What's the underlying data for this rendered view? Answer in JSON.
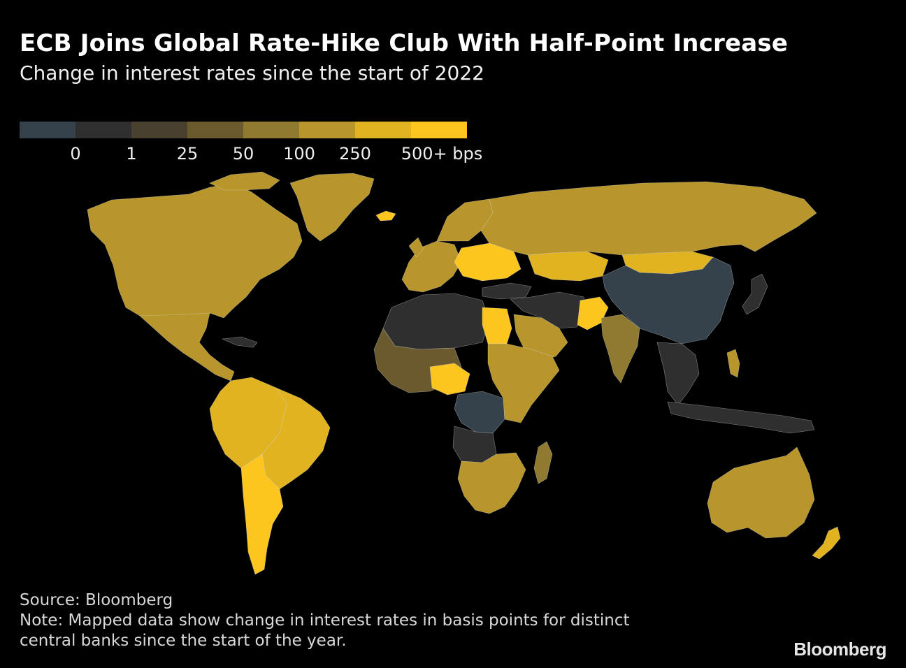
{
  "header": {
    "title": "ECB Joins Global Rate-Hike Club With Half-Point Increase",
    "subtitle": "Change in interest rates since the start of 2022"
  },
  "legend": {
    "colors": [
      "#35424b",
      "#2f2f2f",
      "#4a4030",
      "#6b5a2e",
      "#8f7a30",
      "#b8962b",
      "#e2b321",
      "#fdc61e"
    ],
    "labels": [
      "0",
      "1",
      "25",
      "50",
      "100",
      "250",
      "500+ bps"
    ]
  },
  "map": {
    "regions": [
      {
        "name": "north-america",
        "bin": 5
      },
      {
        "name": "mexico-central-america",
        "bin": 5
      },
      {
        "name": "caribbean",
        "bin": 1
      },
      {
        "name": "south-america-north",
        "bin": 6
      },
      {
        "name": "brazil",
        "bin": 6
      },
      {
        "name": "argentina",
        "bin": 7
      },
      {
        "name": "greenland",
        "bin": 5
      },
      {
        "name": "iceland",
        "bin": 7
      },
      {
        "name": "western-europe",
        "bin": 5
      },
      {
        "name": "eastern-europe",
        "bin": 7
      },
      {
        "name": "russia",
        "bin": 5
      },
      {
        "name": "kazakhstan",
        "bin": 6
      },
      {
        "name": "mongolia",
        "bin": 6
      },
      {
        "name": "china",
        "bin": 0
      },
      {
        "name": "japan",
        "bin": 1
      },
      {
        "name": "turkey",
        "bin": 1
      },
      {
        "name": "middle-east",
        "bin": 1
      },
      {
        "name": "saudi-arabia",
        "bin": 5
      },
      {
        "name": "egypt",
        "bin": 7
      },
      {
        "name": "pakistan",
        "bin": 7
      },
      {
        "name": "india",
        "bin": 4
      },
      {
        "name": "southeast-asia",
        "bin": 1
      },
      {
        "name": "indonesia",
        "bin": 1
      },
      {
        "name": "philippines",
        "bin": 5
      },
      {
        "name": "north-africa",
        "bin": 1
      },
      {
        "name": "west-africa",
        "bin": 3
      },
      {
        "name": "nigeria",
        "bin": 7
      },
      {
        "name": "congo",
        "bin": 0
      },
      {
        "name": "angola",
        "bin": 1
      },
      {
        "name": "east-africa",
        "bin": 5
      },
      {
        "name": "southern-africa",
        "bin": 5
      },
      {
        "name": "madagascar",
        "bin": 4
      },
      {
        "name": "australia",
        "bin": 5
      },
      {
        "name": "new-zealand",
        "bin": 6
      }
    ]
  },
  "footer": {
    "source": "Source: Bloomberg",
    "note_line1": "Note: Mapped data show change in interest rates in basis points for distinct",
    "note_line2": "central banks since the start of the year."
  },
  "branding": {
    "logo_text": "Bloomberg"
  }
}
